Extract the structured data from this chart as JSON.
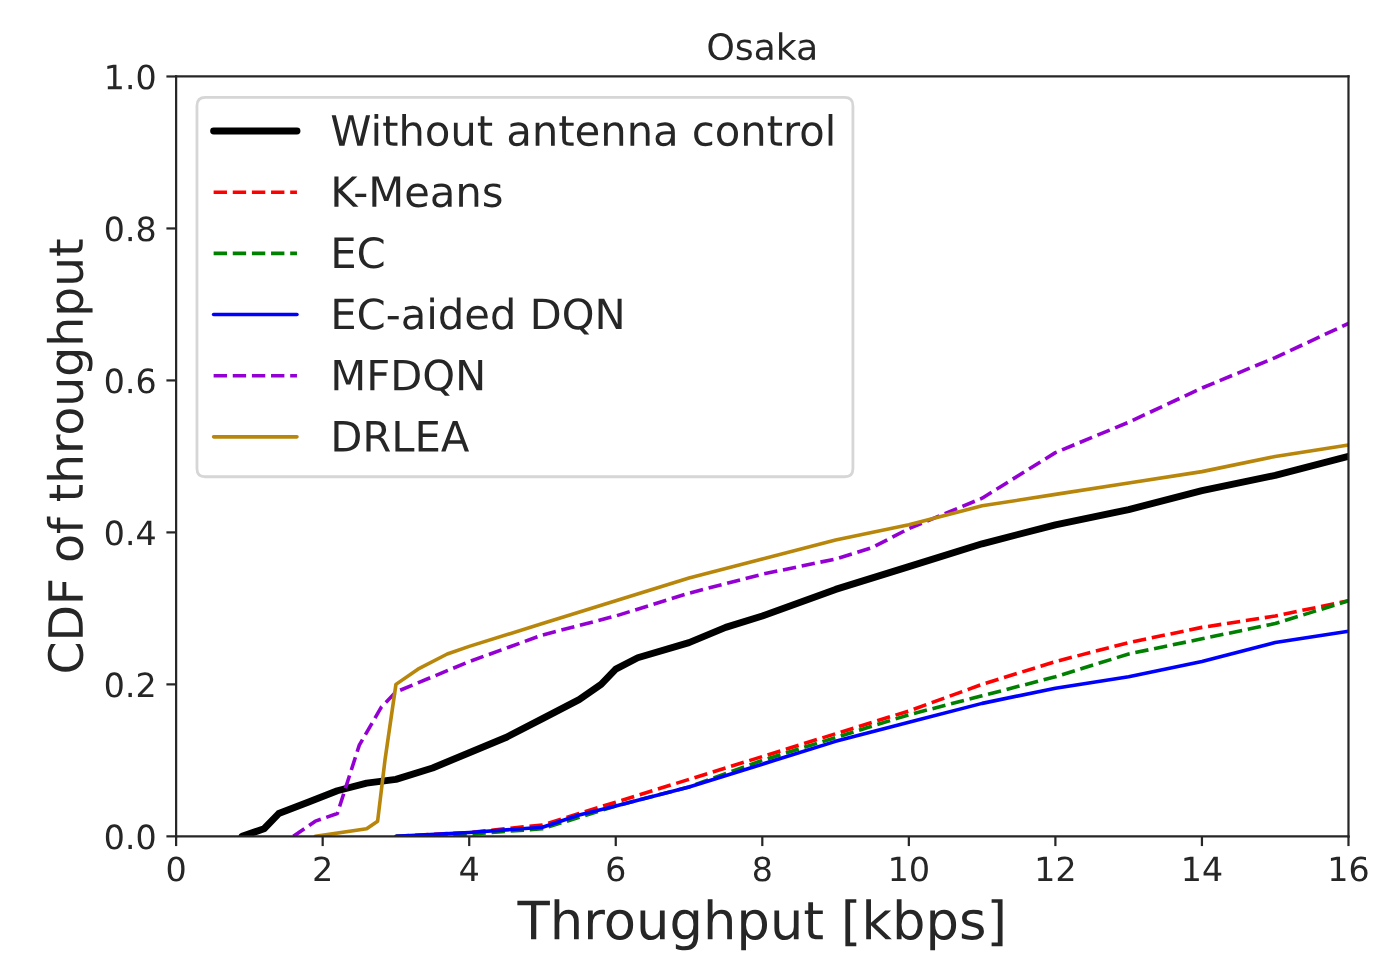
{
  "chart_data": {
    "type": "line",
    "title": "Osaka",
    "xlabel": "Throughput [kbps]",
    "ylabel": "CDF of throughput",
    "xlim": [
      0,
      16
    ],
    "ylim": [
      0,
      1.0
    ],
    "xticks": [
      0,
      2,
      4,
      6,
      8,
      10,
      12,
      14,
      16
    ],
    "yticks": [
      {
        "value": 0,
        "label": "0.0"
      },
      {
        "value": 0.2,
        "label": "0.2"
      },
      {
        "value": 0.4,
        "label": "0.4"
      },
      {
        "value": 0.6,
        "label": "0.6"
      },
      {
        "value": 0.8,
        "label": "0.8"
      },
      {
        "value": 1.0,
        "label": "1.0"
      }
    ],
    "legend": "top left",
    "grid": false,
    "series": [
      {
        "name": "Without antenna control",
        "color": "#000000",
        "line_style": "solid",
        "x": [
          0.9,
          1.2,
          1.4,
          1.8,
          2.2,
          2.6,
          3,
          3.5,
          4,
          4.5,
          5,
          5.5,
          5.8,
          6,
          6.3,
          7,
          7.5,
          8,
          9,
          10,
          11,
          12,
          13,
          14,
          15,
          16
        ],
        "values": [
          0,
          0.01,
          0.03,
          0.045,
          0.06,
          0.07,
          0.075,
          0.09,
          0.11,
          0.13,
          0.155,
          0.18,
          0.2,
          0.22,
          0.235,
          0.255,
          0.275,
          0.29,
          0.325,
          0.355,
          0.385,
          0.41,
          0.43,
          0.455,
          0.475,
          0.5
        ]
      },
      {
        "name": "K-Means",
        "color": "#ff0000",
        "line_style": "dashed",
        "x": [
          3,
          4,
          5,
          5.5,
          6,
          7,
          8,
          9,
          10,
          11,
          12,
          13,
          14,
          15,
          16
        ],
        "values": [
          0,
          0.005,
          0.015,
          0.03,
          0.045,
          0.075,
          0.105,
          0.135,
          0.165,
          0.2,
          0.23,
          0.255,
          0.275,
          0.29,
          0.31
        ]
      },
      {
        "name": "EC",
        "color": "#008000",
        "line_style": "dashed",
        "x": [
          3,
          4,
          5,
          5.5,
          6,
          7,
          8,
          9,
          10,
          11,
          12,
          13,
          14,
          15,
          16
        ],
        "values": [
          0,
          0.003,
          0.01,
          0.025,
          0.04,
          0.065,
          0.1,
          0.13,
          0.16,
          0.185,
          0.21,
          0.24,
          0.26,
          0.28,
          0.31
        ]
      },
      {
        "name": "EC-aided DQN",
        "color": "#0000ff",
        "line_style": "solid",
        "x": [
          3,
          4,
          5,
          5.5,
          6,
          7,
          8,
          9,
          10,
          11,
          12,
          13,
          14,
          15,
          16
        ],
        "values": [
          0,
          0.005,
          0.012,
          0.028,
          0.04,
          0.065,
          0.095,
          0.125,
          0.15,
          0.175,
          0.195,
          0.21,
          0.23,
          0.255,
          0.27
        ]
      },
      {
        "name": "MFDQN",
        "color": "#9400d3",
        "line_style": "dashed",
        "x": [
          1.6,
          1.9,
          2.2,
          2.5,
          2.8,
          3.0,
          3.5,
          4,
          5,
          6,
          7,
          8,
          9,
          9.5,
          10,
          10.5,
          11,
          12,
          13,
          14,
          15,
          16
        ],
        "values": [
          0,
          0.02,
          0.03,
          0.12,
          0.17,
          0.19,
          0.21,
          0.23,
          0.265,
          0.29,
          0.32,
          0.345,
          0.365,
          0.38,
          0.405,
          0.425,
          0.445,
          0.505,
          0.545,
          0.59,
          0.63,
          0.675
        ]
      },
      {
        "name": "DRLEA",
        "color": "#b8860b",
        "line_style": "solid",
        "x": [
          1.9,
          2.6,
          2.75,
          2.85,
          3.0,
          3.3,
          3.7,
          4,
          5,
          6,
          7,
          8,
          9,
          10,
          11,
          12,
          13,
          14,
          15,
          16
        ],
        "values": [
          0,
          0.01,
          0.02,
          0.1,
          0.2,
          0.22,
          0.24,
          0.25,
          0.28,
          0.31,
          0.34,
          0.365,
          0.39,
          0.41,
          0.435,
          0.45,
          0.465,
          0.48,
          0.5,
          0.515
        ]
      }
    ]
  }
}
